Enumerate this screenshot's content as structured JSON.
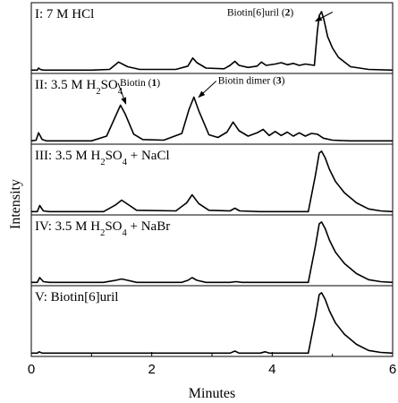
{
  "chart_data": {
    "type": "line",
    "xlabel": "Minutes",
    "ylabel": "Intensity",
    "xlim": [
      0,
      6
    ],
    "x_ticks": [
      "0",
      "2",
      "4",
      "6"
    ],
    "grid": false,
    "panels": [
      {
        "label": "I: 7 M HCl",
        "label_parts": [
          [
            "I: 7 M HCl",
            "n"
          ]
        ],
        "annotations": [
          {
            "parts": [
              [
                "Biotin[6]uril (",
                "n"
              ],
              [
                "2",
                "b"
              ],
              [
                ")",
                "n"
              ]
            ],
            "x": 4.72,
            "y": 0.78,
            "text_x": 3.25,
            "text_y": 0.86
          }
        ],
        "series": {
          "x": [
            0.0,
            0.1,
            0.12,
            0.15,
            0.2,
            1.0,
            1.3,
            1.45,
            1.6,
            1.8,
            2.4,
            2.6,
            2.68,
            2.75,
            2.9,
            3.2,
            3.3,
            3.38,
            3.45,
            3.6,
            3.75,
            3.82,
            3.9,
            4.05,
            4.15,
            4.25,
            4.35,
            4.45,
            4.55,
            4.7,
            4.75,
            4.78,
            4.82,
            4.86,
            4.92,
            5.0,
            5.1,
            5.3,
            5.6,
            6.0
          ],
          "y": [
            0.05,
            0.05,
            0.08,
            0.06,
            0.05,
            0.05,
            0.06,
            0.17,
            0.1,
            0.06,
            0.06,
            0.11,
            0.23,
            0.16,
            0.08,
            0.07,
            0.12,
            0.18,
            0.12,
            0.09,
            0.11,
            0.17,
            0.12,
            0.14,
            0.16,
            0.13,
            0.15,
            0.12,
            0.14,
            0.12,
            0.62,
            0.86,
            0.92,
            0.8,
            0.55,
            0.38,
            0.24,
            0.1,
            0.06,
            0.05
          ]
        }
      },
      {
        "label": "II: 3.5 M H2SO4",
        "label_parts": [
          [
            "II: 3.5 M H",
            "n"
          ],
          [
            "2",
            "sub"
          ],
          [
            "SO",
            "n"
          ],
          [
            "4",
            "sub"
          ]
        ],
        "annotations": [
          {
            "parts": [
              [
                "Biotin (",
                "n"
              ],
              [
                "1",
                "b"
              ],
              [
                ")",
                "n"
              ]
            ],
            "x": 1.57,
            "y": 0.6,
            "text_x": 1.47,
            "text_y": 0.87
          },
          {
            "parts": [
              [
                "Biotin dimer (",
                "n"
              ],
              [
                "3",
                "b"
              ],
              [
                ")",
                "n"
              ]
            ],
            "x": 2.78,
            "y": 0.7,
            "text_x": 3.1,
            "text_y": 0.9
          }
        ],
        "series": {
          "x": [
            0.0,
            0.08,
            0.12,
            0.18,
            0.25,
            1.0,
            1.25,
            1.4,
            1.48,
            1.56,
            1.7,
            1.85,
            2.2,
            2.5,
            2.62,
            2.7,
            2.78,
            2.95,
            3.1,
            3.25,
            3.35,
            3.45,
            3.6,
            3.75,
            3.85,
            3.95,
            4.05,
            4.15,
            4.25,
            4.35,
            4.45,
            4.55,
            4.65,
            4.75,
            4.85,
            5.0,
            5.3,
            6.0
          ],
          "y": [
            0.05,
            0.06,
            0.17,
            0.07,
            0.05,
            0.05,
            0.12,
            0.42,
            0.58,
            0.45,
            0.15,
            0.07,
            0.06,
            0.16,
            0.52,
            0.7,
            0.5,
            0.14,
            0.1,
            0.18,
            0.33,
            0.2,
            0.12,
            0.17,
            0.22,
            0.13,
            0.19,
            0.13,
            0.18,
            0.12,
            0.17,
            0.12,
            0.16,
            0.15,
            0.09,
            0.06,
            0.05,
            0.05
          ]
        }
      },
      {
        "label": "III: 3.5 M H2SO4 + NaCl",
        "label_parts": [
          [
            "III: 3.5 M H",
            "n"
          ],
          [
            "2",
            "sub"
          ],
          [
            "SO",
            "n"
          ],
          [
            "4",
            "sub"
          ],
          [
            " + NaCl",
            "n"
          ]
        ],
        "annotations": [],
        "series": {
          "x": [
            0.0,
            0.1,
            0.14,
            0.2,
            0.3,
            1.2,
            1.4,
            1.5,
            1.6,
            1.75,
            2.4,
            2.58,
            2.67,
            2.78,
            2.95,
            3.3,
            3.38,
            3.46,
            3.8,
            4.6,
            4.72,
            4.78,
            4.82,
            4.88,
            4.95,
            5.05,
            5.2,
            5.4,
            5.6,
            5.8,
            6.0
          ],
          "y": [
            0.05,
            0.05,
            0.14,
            0.06,
            0.05,
            0.05,
            0.15,
            0.22,
            0.16,
            0.07,
            0.06,
            0.18,
            0.3,
            0.17,
            0.07,
            0.06,
            0.1,
            0.06,
            0.05,
            0.05,
            0.6,
            0.92,
            0.95,
            0.85,
            0.68,
            0.5,
            0.33,
            0.18,
            0.09,
            0.06,
            0.05
          ]
        }
      },
      {
        "label": "IV: 3.5 M H2SO4 + NaBr",
        "label_parts": [
          [
            "IV: 3.5 M H",
            "n"
          ],
          [
            "2",
            "sub"
          ],
          [
            "SO",
            "n"
          ],
          [
            "4",
            "sub"
          ],
          [
            " + NaBr",
            "n"
          ]
        ],
        "annotations": [],
        "series": {
          "x": [
            0.0,
            0.1,
            0.14,
            0.2,
            0.3,
            1.2,
            1.4,
            1.5,
            1.6,
            1.75,
            2.5,
            2.6,
            2.67,
            2.75,
            2.9,
            3.3,
            3.4,
            3.5,
            4.6,
            4.72,
            4.78,
            4.82,
            4.88,
            4.95,
            5.05,
            5.2,
            5.4,
            5.6,
            5.8,
            6.0
          ],
          "y": [
            0.05,
            0.05,
            0.12,
            0.06,
            0.05,
            0.05,
            0.08,
            0.1,
            0.08,
            0.05,
            0.05,
            0.08,
            0.12,
            0.08,
            0.05,
            0.05,
            0.06,
            0.05,
            0.05,
            0.6,
            0.92,
            0.95,
            0.85,
            0.68,
            0.5,
            0.33,
            0.18,
            0.09,
            0.06,
            0.05
          ]
        }
      },
      {
        "label": "V: Biotin[6]uril",
        "label_parts": [
          [
            "V: Biotin[6]uril",
            "n"
          ]
        ],
        "annotations": [],
        "series": {
          "x": [
            0.0,
            0.1,
            0.13,
            0.18,
            0.3,
            3.3,
            3.38,
            3.45,
            3.8,
            3.88,
            3.95,
            4.6,
            4.72,
            4.78,
            4.82,
            4.88,
            4.95,
            5.05,
            5.2,
            5.4,
            5.6,
            5.8,
            6.0
          ],
          "y": [
            0.05,
            0.05,
            0.07,
            0.05,
            0.05,
            0.05,
            0.08,
            0.05,
            0.05,
            0.07,
            0.05,
            0.05,
            0.6,
            0.92,
            0.95,
            0.85,
            0.68,
            0.5,
            0.33,
            0.18,
            0.09,
            0.06,
            0.05
          ]
        }
      }
    ]
  }
}
